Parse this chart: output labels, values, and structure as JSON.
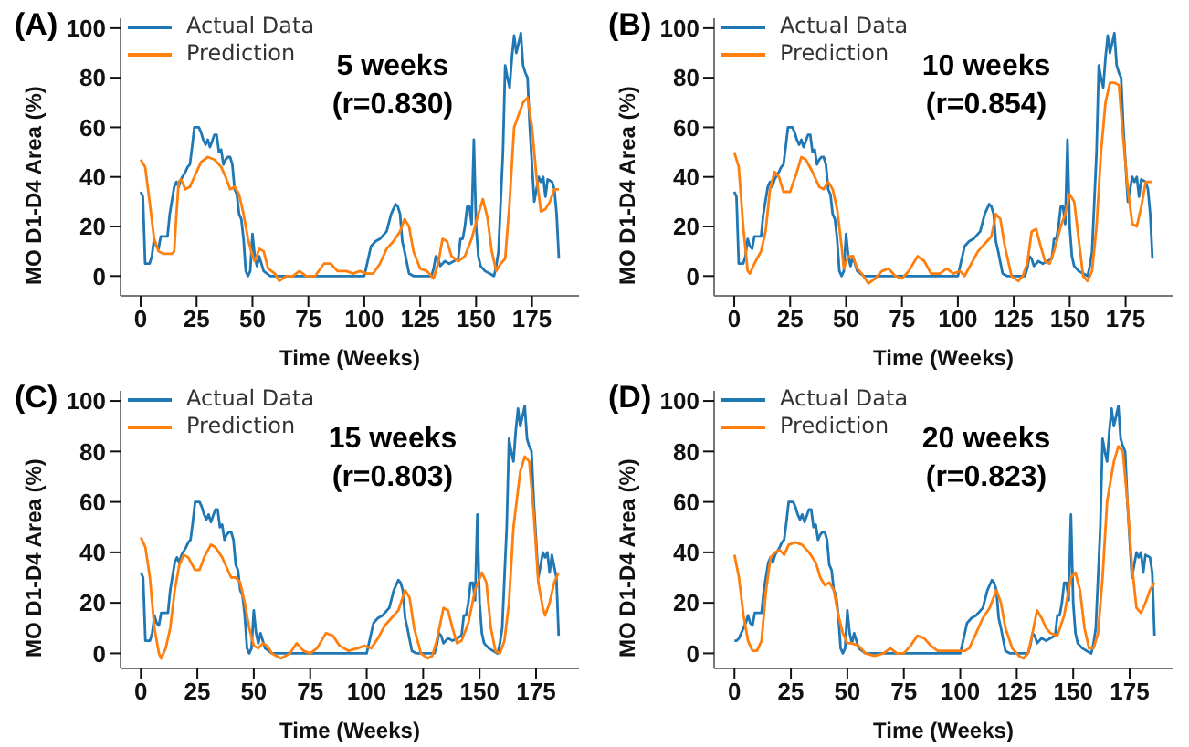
{
  "chart_data": [
    {
      "type": "line",
      "title": "(A)",
      "xlabel": "Time (Weeks)",
      "ylabel": "MO D1-D4 Area (%)",
      "annotations": [
        "5 weeks",
        "(r=0.830)"
      ],
      "xlim": [
        -9,
        196
      ],
      "ylim": [
        -8,
        104
      ],
      "xticks": [
        0,
        25,
        50,
        75,
        100,
        125,
        150,
        175
      ],
      "yticks": [
        0,
        20,
        40,
        60,
        80,
        100
      ],
      "legend": "top left",
      "line_style": "solid",
      "marker": "none",
      "series": [
        {
          "name": "Actual Data",
          "color": "#1f77b4",
          "x": [
            0,
            1,
            2,
            4,
            5,
            6,
            7,
            8,
            9,
            12,
            13,
            15,
            16,
            17,
            18,
            20,
            21,
            22,
            23,
            24,
            26,
            27,
            28,
            29,
            30,
            31,
            33,
            34,
            35,
            36,
            37,
            38,
            39,
            40,
            41,
            42,
            43,
            44,
            45,
            46,
            47,
            48,
            49,
            50,
            51,
            52,
            53,
            55,
            58,
            100,
            101,
            103,
            105,
            107,
            110,
            112,
            114,
            115,
            116,
            117,
            118,
            120,
            122,
            130,
            131,
            132,
            133,
            134,
            136,
            138,
            140,
            142,
            143,
            144,
            145,
            146,
            147,
            148,
            149,
            150,
            151,
            152,
            154,
            156,
            158,
            159,
            160,
            161,
            162,
            163,
            164,
            165,
            166,
            167,
            168,
            169,
            170,
            171,
            172,
            173,
            174,
            175,
            176,
            177,
            178,
            179,
            180,
            181,
            182,
            184,
            185,
            186,
            187
          ],
          "values": [
            34,
            32,
            5,
            5,
            8,
            15,
            12,
            11,
            16,
            16,
            25,
            36,
            38,
            36,
            39,
            42,
            44,
            45,
            52,
            60,
            60,
            58,
            55,
            53,
            55,
            52,
            57,
            57,
            50,
            51,
            45,
            47,
            48,
            48,
            45,
            35,
            33,
            25,
            23,
            15,
            2,
            0,
            2,
            17,
            8,
            4,
            8,
            2,
            0,
            0,
            4,
            12,
            14,
            15,
            18,
            25,
            29,
            28,
            25,
            14,
            10,
            1,
            0,
            0,
            3,
            8,
            7,
            4,
            6,
            5,
            6,
            7,
            15,
            15,
            20,
            28,
            28,
            21,
            55,
            20,
            8,
            4,
            2,
            1,
            0,
            4,
            10,
            30,
            50,
            85,
            80,
            76,
            88,
            97,
            90,
            94,
            98,
            85,
            82,
            80,
            60,
            45,
            30,
            35,
            40,
            38,
            40,
            32,
            39,
            38,
            35,
            25,
            7
          ]
        },
        {
          "name": "Prediction",
          "color": "#ff7f0e",
          "x": [
            0,
            2,
            4,
            6,
            8,
            10,
            14,
            15,
            16,
            17,
            18,
            20,
            22,
            24,
            27,
            30,
            33,
            36,
            38,
            40,
            42,
            44,
            46,
            48,
            50,
            51,
            53,
            55,
            57,
            60,
            62,
            65,
            68,
            71,
            74,
            78,
            82,
            85,
            88,
            92,
            95,
            98,
            101,
            104,
            107,
            110,
            113,
            116,
            118,
            120,
            122,
            125,
            128,
            131,
            133,
            135,
            137,
            139,
            142,
            145,
            148,
            151,
            153,
            155,
            157,
            159,
            161,
            163,
            165,
            167,
            169,
            171,
            173,
            175,
            177,
            179,
            181,
            183,
            185,
            187
          ],
          "values": [
            47,
            44,
            30,
            15,
            10,
            9,
            9,
            10,
            25,
            38,
            39,
            35,
            36,
            40,
            46,
            48,
            47,
            44,
            40,
            35,
            36,
            33,
            25,
            15,
            8,
            6,
            11,
            10,
            3,
            1,
            -2,
            0,
            0,
            2,
            0,
            0,
            5,
            5,
            2,
            2,
            1,
            2,
            1,
            1,
            5,
            11,
            14,
            18,
            23,
            20,
            10,
            3,
            2,
            -1,
            5,
            15,
            14,
            8,
            6,
            8,
            15,
            25,
            31,
            24,
            10,
            2,
            5,
            7,
            30,
            60,
            65,
            70,
            72,
            60,
            40,
            26,
            27,
            30,
            35,
            35
          ]
        }
      ]
    },
    {
      "type": "line",
      "title": "(B)",
      "xlabel": "Time (Weeks)",
      "ylabel": "MO D1-D4 Area (%)",
      "annotations": [
        "10 weeks",
        "(r=0.854)"
      ],
      "xlim": [
        -9,
        196
      ],
      "ylim": [
        -8,
        104
      ],
      "xticks": [
        0,
        25,
        50,
        75,
        100,
        125,
        150,
        175
      ],
      "yticks": [
        0,
        20,
        40,
        60,
        80,
        100
      ],
      "legend": "top left",
      "line_style": "solid",
      "marker": "none",
      "series": [
        {
          "name": "Actual Data",
          "color": "#1f77b4",
          "x": [
            0,
            1,
            2,
            4,
            5,
            6,
            7,
            8,
            9,
            12,
            13,
            15,
            16,
            17,
            18,
            20,
            21,
            22,
            23,
            24,
            26,
            27,
            28,
            29,
            30,
            31,
            33,
            34,
            35,
            36,
            37,
            38,
            39,
            40,
            41,
            42,
            43,
            44,
            45,
            46,
            47,
            48,
            49,
            50,
            51,
            52,
            53,
            55,
            58,
            100,
            101,
            103,
            105,
            107,
            110,
            112,
            114,
            115,
            116,
            117,
            118,
            120,
            122,
            130,
            131,
            132,
            133,
            134,
            136,
            138,
            140,
            142,
            143,
            144,
            145,
            146,
            147,
            148,
            149,
            150,
            151,
            152,
            154,
            156,
            158,
            159,
            160,
            161,
            162,
            163,
            164,
            165,
            166,
            167,
            168,
            169,
            170,
            171,
            172,
            173,
            174,
            175,
            176,
            177,
            178,
            179,
            180,
            181,
            182,
            184,
            185,
            186,
            187
          ],
          "values": [
            34,
            32,
            5,
            5,
            8,
            15,
            12,
            11,
            16,
            16,
            25,
            36,
            38,
            36,
            39,
            42,
            44,
            45,
            52,
            60,
            60,
            58,
            55,
            53,
            55,
            52,
            57,
            57,
            50,
            51,
            45,
            47,
            48,
            48,
            45,
            35,
            33,
            25,
            23,
            15,
            2,
            0,
            2,
            17,
            8,
            4,
            8,
            2,
            0,
            0,
            4,
            12,
            14,
            15,
            18,
            25,
            29,
            28,
            25,
            14,
            10,
            1,
            0,
            0,
            3,
            8,
            7,
            4,
            6,
            5,
            6,
            7,
            15,
            15,
            20,
            28,
            28,
            21,
            55,
            20,
            8,
            4,
            2,
            1,
            0,
            4,
            10,
            30,
            50,
            85,
            80,
            76,
            88,
            97,
            90,
            94,
            98,
            85,
            82,
            80,
            60,
            45,
            30,
            35,
            40,
            38,
            40,
            32,
            39,
            38,
            35,
            25,
            7
          ]
        },
        {
          "name": "Prediction",
          "color": "#ff7f0e",
          "x": [
            0,
            2,
            4,
            6,
            7,
            9,
            12,
            14,
            16,
            18,
            20,
            22,
            25,
            28,
            30,
            32,
            35,
            38,
            40,
            42,
            44,
            46,
            48,
            49,
            51,
            53,
            55,
            57,
            60,
            63,
            66,
            69,
            72,
            75,
            78,
            82,
            85,
            88,
            92,
            95,
            98,
            101,
            103,
            106,
            109,
            112,
            115,
            117,
            119,
            121,
            124,
            127,
            129,
            131,
            133,
            135,
            137,
            139,
            141,
            143,
            146,
            148,
            150,
            152,
            154,
            156,
            158,
            160,
            162,
            164,
            166,
            168,
            170,
            172,
            174,
            176,
            178,
            180,
            182,
            184,
            187
          ],
          "values": [
            50,
            44,
            20,
            2,
            1,
            5,
            10,
            18,
            35,
            42,
            40,
            34,
            34,
            42,
            48,
            47,
            42,
            36,
            35,
            38,
            35,
            27,
            12,
            3,
            8,
            8,
            3,
            1,
            -3,
            -1,
            2,
            3,
            0,
            -1,
            2,
            8,
            6,
            1,
            1,
            3,
            1,
            2,
            0,
            5,
            10,
            13,
            16,
            25,
            23,
            12,
            0,
            -2,
            0,
            5,
            18,
            19,
            12,
            6,
            5,
            10,
            20,
            25,
            33,
            30,
            15,
            0,
            -2,
            2,
            20,
            50,
            70,
            78,
            78,
            77,
            55,
            35,
            21,
            20,
            28,
            38,
            38
          ]
        }
      ]
    },
    {
      "type": "line",
      "title": "(C)",
      "xlabel": "Time (Weeks)",
      "ylabel": "MO D1-D4 Area (%)",
      "annotations": [
        "15 weeks",
        "(r=0.803)"
      ],
      "xlim": [
        -9,
        194
      ],
      "ylim": [
        -6,
        104
      ],
      "xticks": [
        0,
        25,
        50,
        75,
        100,
        125,
        150,
        175
      ],
      "yticks": [
        0,
        20,
        40,
        60,
        80,
        100
      ],
      "legend": "top left",
      "line_style": "solid",
      "marker": "none",
      "series": [
        {
          "name": "Actual Data",
          "color": "#1f77b4",
          "x": [
            0,
            1,
            2,
            4,
            5,
            6,
            7,
            8,
            9,
            12,
            13,
            15,
            16,
            17,
            18,
            20,
            21,
            22,
            23,
            24,
            26,
            27,
            28,
            29,
            30,
            31,
            33,
            34,
            35,
            36,
            37,
            38,
            39,
            40,
            41,
            42,
            43,
            44,
            45,
            46,
            47,
            48,
            49,
            50,
            51,
            52,
            53,
            55,
            58,
            100,
            101,
            103,
            105,
            107,
            110,
            112,
            114,
            115,
            116,
            117,
            118,
            120,
            122,
            130,
            131,
            132,
            133,
            134,
            136,
            138,
            140,
            142,
            143,
            144,
            145,
            146,
            147,
            148,
            149,
            150,
            151,
            152,
            154,
            156,
            158,
            159,
            160,
            161,
            162,
            163,
            164,
            165,
            166,
            167,
            168,
            169,
            170,
            171,
            172,
            173,
            174,
            175,
            176,
            177,
            178,
            179,
            180,
            181,
            182,
            184,
            185
          ],
          "values": [
            32,
            30,
            5,
            5,
            8,
            15,
            12,
            11,
            16,
            16,
            25,
            36,
            38,
            36,
            39,
            42,
            44,
            45,
            52,
            60,
            60,
            58,
            55,
            53,
            55,
            52,
            57,
            57,
            50,
            51,
            45,
            47,
            48,
            48,
            45,
            35,
            33,
            25,
            23,
            15,
            2,
            0,
            2,
            17,
            8,
            4,
            8,
            2,
            0,
            0,
            4,
            12,
            14,
            15,
            18,
            25,
            29,
            28,
            25,
            14,
            10,
            1,
            0,
            0,
            3,
            8,
            7,
            4,
            6,
            5,
            6,
            7,
            15,
            15,
            20,
            28,
            28,
            21,
            55,
            20,
            8,
            4,
            2,
            1,
            0,
            4,
            10,
            30,
            50,
            85,
            80,
            76,
            88,
            97,
            90,
            94,
            98,
            85,
            82,
            80,
            60,
            45,
            30,
            35,
            40,
            38,
            40,
            32,
            39,
            30,
            7
          ]
        },
        {
          "name": "Prediction",
          "color": "#ff7f0e",
          "x": [
            0,
            2,
            4,
            6,
            8,
            9,
            11,
            13,
            15,
            17,
            19,
            21,
            24,
            26,
            28,
            31,
            33,
            36,
            38,
            40,
            42,
            44,
            46,
            48,
            50,
            52,
            54,
            56,
            58,
            62,
            66,
            69,
            72,
            75,
            78,
            82,
            85,
            88,
            92,
            96,
            99,
            102,
            105,
            108,
            111,
            114,
            117,
            119,
            121,
            124,
            127,
            129,
            131,
            134,
            136,
            138,
            140,
            142,
            145,
            148,
            151,
            153,
            155,
            157,
            159,
            161,
            163,
            165,
            168,
            170,
            172,
            174,
            176,
            178,
            179,
            181,
            183,
            185
          ],
          "values": [
            46,
            42,
            30,
            10,
            0,
            -2,
            2,
            10,
            25,
            35,
            39,
            38,
            33,
            33,
            38,
            43,
            42,
            38,
            34,
            30,
            30,
            28,
            20,
            10,
            3,
            2,
            4,
            3,
            0,
            -2,
            0,
            4,
            1,
            0,
            2,
            8,
            7,
            3,
            1,
            2,
            3,
            2,
            6,
            11,
            14,
            17,
            25,
            22,
            10,
            0,
            -2,
            -1,
            5,
            18,
            17,
            10,
            4,
            5,
            12,
            25,
            32,
            28,
            10,
            1,
            0,
            5,
            20,
            50,
            72,
            78,
            76,
            55,
            28,
            18,
            15,
            20,
            28,
            32
          ]
        }
      ]
    },
    {
      "type": "line",
      "title": "(D)",
      "xlabel": "Time (Weeks)",
      "ylabel": "MO D1-D4 Area (%)",
      "annotations": [
        "20 weeks",
        "(r=0.823)"
      ],
      "xlim": [
        -9,
        194
      ],
      "ylim": [
        -6,
        104
      ],
      "xticks": [
        0,
        25,
        50,
        75,
        100,
        125,
        150,
        175
      ],
      "yticks": [
        0,
        20,
        40,
        60,
        80,
        100
      ],
      "legend": "top left",
      "line_style": "solid",
      "marker": "none",
      "series": [
        {
          "name": "Actual Data",
          "color": "#1f77b4",
          "x": [
            0,
            1,
            2,
            4,
            5,
            6,
            7,
            8,
            9,
            12,
            13,
            15,
            16,
            17,
            18,
            20,
            21,
            22,
            23,
            24,
            26,
            27,
            28,
            29,
            30,
            31,
            33,
            34,
            35,
            36,
            37,
            38,
            39,
            40,
            41,
            42,
            43,
            44,
            45,
            46,
            47,
            48,
            49,
            50,
            51,
            52,
            53,
            55,
            58,
            100,
            101,
            103,
            105,
            107,
            110,
            112,
            114,
            115,
            116,
            117,
            118,
            120,
            122,
            130,
            131,
            132,
            133,
            134,
            136,
            138,
            140,
            142,
            143,
            144,
            145,
            146,
            147,
            148,
            149,
            150,
            151,
            152,
            154,
            156,
            158,
            159,
            160,
            161,
            162,
            163,
            164,
            165,
            166,
            167,
            168,
            169,
            170,
            171,
            172,
            173,
            174,
            175,
            176,
            177,
            178,
            179,
            180,
            181,
            182,
            184,
            185,
            186
          ],
          "values": [
            5,
            5,
            6,
            10,
            12,
            15,
            12,
            11,
            16,
            16,
            25,
            36,
            38,
            36,
            39,
            42,
            44,
            45,
            52,
            60,
            60,
            58,
            55,
            53,
            55,
            52,
            57,
            57,
            50,
            51,
            45,
            47,
            48,
            48,
            45,
            35,
            33,
            25,
            23,
            15,
            2,
            0,
            2,
            17,
            8,
            4,
            8,
            2,
            0,
            0,
            4,
            12,
            14,
            15,
            18,
            25,
            29,
            28,
            25,
            14,
            10,
            1,
            0,
            0,
            3,
            8,
            7,
            4,
            6,
            5,
            6,
            7,
            15,
            15,
            20,
            28,
            28,
            21,
            55,
            20,
            8,
            4,
            2,
            1,
            0,
            4,
            10,
            30,
            50,
            85,
            80,
            76,
            88,
            97,
            90,
            94,
            98,
            85,
            82,
            80,
            60,
            45,
            30,
            35,
            40,
            38,
            40,
            32,
            39,
            38,
            32,
            7
          ]
        },
        {
          "name": "Prediction",
          "color": "#ff7f0e",
          "x": [
            0,
            2,
            4,
            6,
            8,
            10,
            12,
            14,
            16,
            18,
            20,
            22,
            24,
            27,
            30,
            33,
            36,
            38,
            40,
            42,
            44,
            46,
            48,
            50,
            52,
            55,
            58,
            62,
            66,
            69,
            72,
            75,
            78,
            81,
            84,
            87,
            90,
            94,
            98,
            102,
            104,
            107,
            110,
            113,
            116,
            118,
            120,
            123,
            126,
            128,
            130,
            132,
            134,
            136,
            138,
            140,
            143,
            146,
            149,
            151,
            153,
            155,
            157,
            159,
            161,
            163,
            165,
            168,
            170,
            172,
            174,
            176,
            178,
            180,
            182,
            184,
            186
          ],
          "values": [
            39,
            30,
            15,
            5,
            1,
            1,
            5,
            25,
            38,
            40,
            41,
            39,
            43,
            44,
            43,
            40,
            36,
            30,
            27,
            28,
            25,
            15,
            8,
            4,
            4,
            3,
            0,
            -1,
            0,
            2,
            0,
            0,
            3,
            7,
            6,
            3,
            1,
            1,
            1,
            1,
            2,
            8,
            14,
            18,
            25,
            20,
            10,
            2,
            -1,
            -2,
            0,
            8,
            17,
            14,
            10,
            8,
            7,
            15,
            30,
            32,
            25,
            10,
            2,
            2,
            8,
            30,
            60,
            76,
            82,
            80,
            60,
            35,
            18,
            16,
            20,
            25,
            28
          ]
        }
      ]
    }
  ]
}
